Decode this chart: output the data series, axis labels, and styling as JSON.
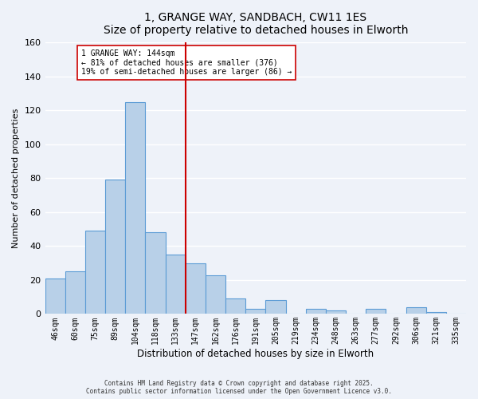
{
  "title": "1, GRANGE WAY, SANDBACH, CW11 1ES",
  "subtitle": "Size of property relative to detached houses in Elworth",
  "xlabel": "Distribution of detached houses by size in Elworth",
  "ylabel": "Number of detached properties",
  "bar_labels": [
    "46sqm",
    "60sqm",
    "75sqm",
    "89sqm",
    "104sqm",
    "118sqm",
    "133sqm",
    "147sqm",
    "162sqm",
    "176sqm",
    "191sqm",
    "205sqm",
    "219sqm",
    "234sqm",
    "248sqm",
    "263sqm",
    "277sqm",
    "292sqm",
    "306sqm",
    "321sqm",
    "335sqm"
  ],
  "bar_values": [
    21,
    25,
    49,
    79,
    125,
    48,
    35,
    30,
    23,
    9,
    3,
    8,
    0,
    3,
    2,
    0,
    3,
    0,
    4,
    1,
    0
  ],
  "bar_color": "#b8d0e8",
  "bar_edge_color": "#5b9bd5",
  "vline_color": "#cc0000",
  "vline_index": 7,
  "annotation_title": "1 GRANGE WAY: 144sqm",
  "annotation_line1": "← 81% of detached houses are smaller (376)",
  "annotation_line2": "19% of semi-detached houses are larger (86) →",
  "annotation_box_color": "#ffffff",
  "annotation_box_edge": "#cc0000",
  "ylim": [
    0,
    160
  ],
  "yticks": [
    0,
    20,
    40,
    60,
    80,
    100,
    120,
    140,
    160
  ],
  "footer1": "Contains HM Land Registry data © Crown copyright and database right 2025.",
  "footer2": "Contains public sector information licensed under the Open Government Licence v3.0.",
  "bg_color": "#eef2f9",
  "grid_color": "#ffffff"
}
